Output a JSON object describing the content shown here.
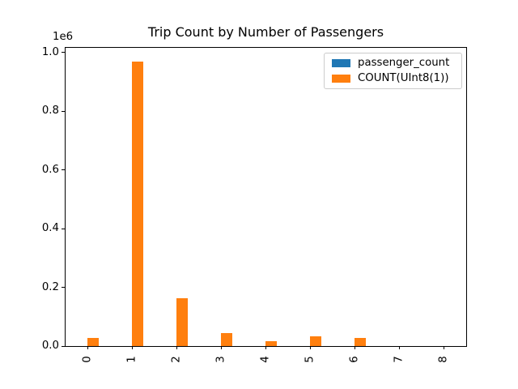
{
  "figure": {
    "title": "Trip Count by Number of Passengers",
    "offset_label": "1e6",
    "background": "#ffffff"
  },
  "legend": {
    "position": "upper right",
    "entries": [
      {
        "label": "passenger_count",
        "color": "#1f77b4"
      },
      {
        "label": "COUNT(UInt8(1))",
        "color": "#ff7f0e"
      }
    ]
  },
  "chart_data": {
    "type": "bar",
    "title": "Trip Count by Number of Passengers",
    "categories": [
      "0",
      "1",
      "2",
      "3",
      "4",
      "5",
      "6",
      "7",
      "8"
    ],
    "series": [
      {
        "name": "passenger_count",
        "color": "#1f77b4",
        "values": [
          0,
          1,
          2,
          3,
          4,
          5,
          6,
          7,
          8
        ]
      },
      {
        "name": "COUNT(UInt8(1))",
        "color": "#ff7f0e",
        "values": [
          27000,
          968000,
          164000,
          45000,
          17000,
          33000,
          27000,
          0,
          0
        ]
      }
    ],
    "xlabel": "",
    "ylabel": "",
    "xtick_labels": [
      "0",
      "1",
      "2",
      "3",
      "4",
      "5",
      "6",
      "7",
      "8"
    ],
    "xtick_rotation": 90,
    "yticks": [
      0,
      200000,
      400000,
      600000,
      800000,
      1000000
    ],
    "ytick_labels": [
      "0.0",
      "0.2",
      "0.4",
      "0.6",
      "0.8",
      "1.0"
    ],
    "y_offset_text": "1e6",
    "ylim": [
      0,
      1015700
    ],
    "grid": false,
    "legend_position": "upper right"
  }
}
